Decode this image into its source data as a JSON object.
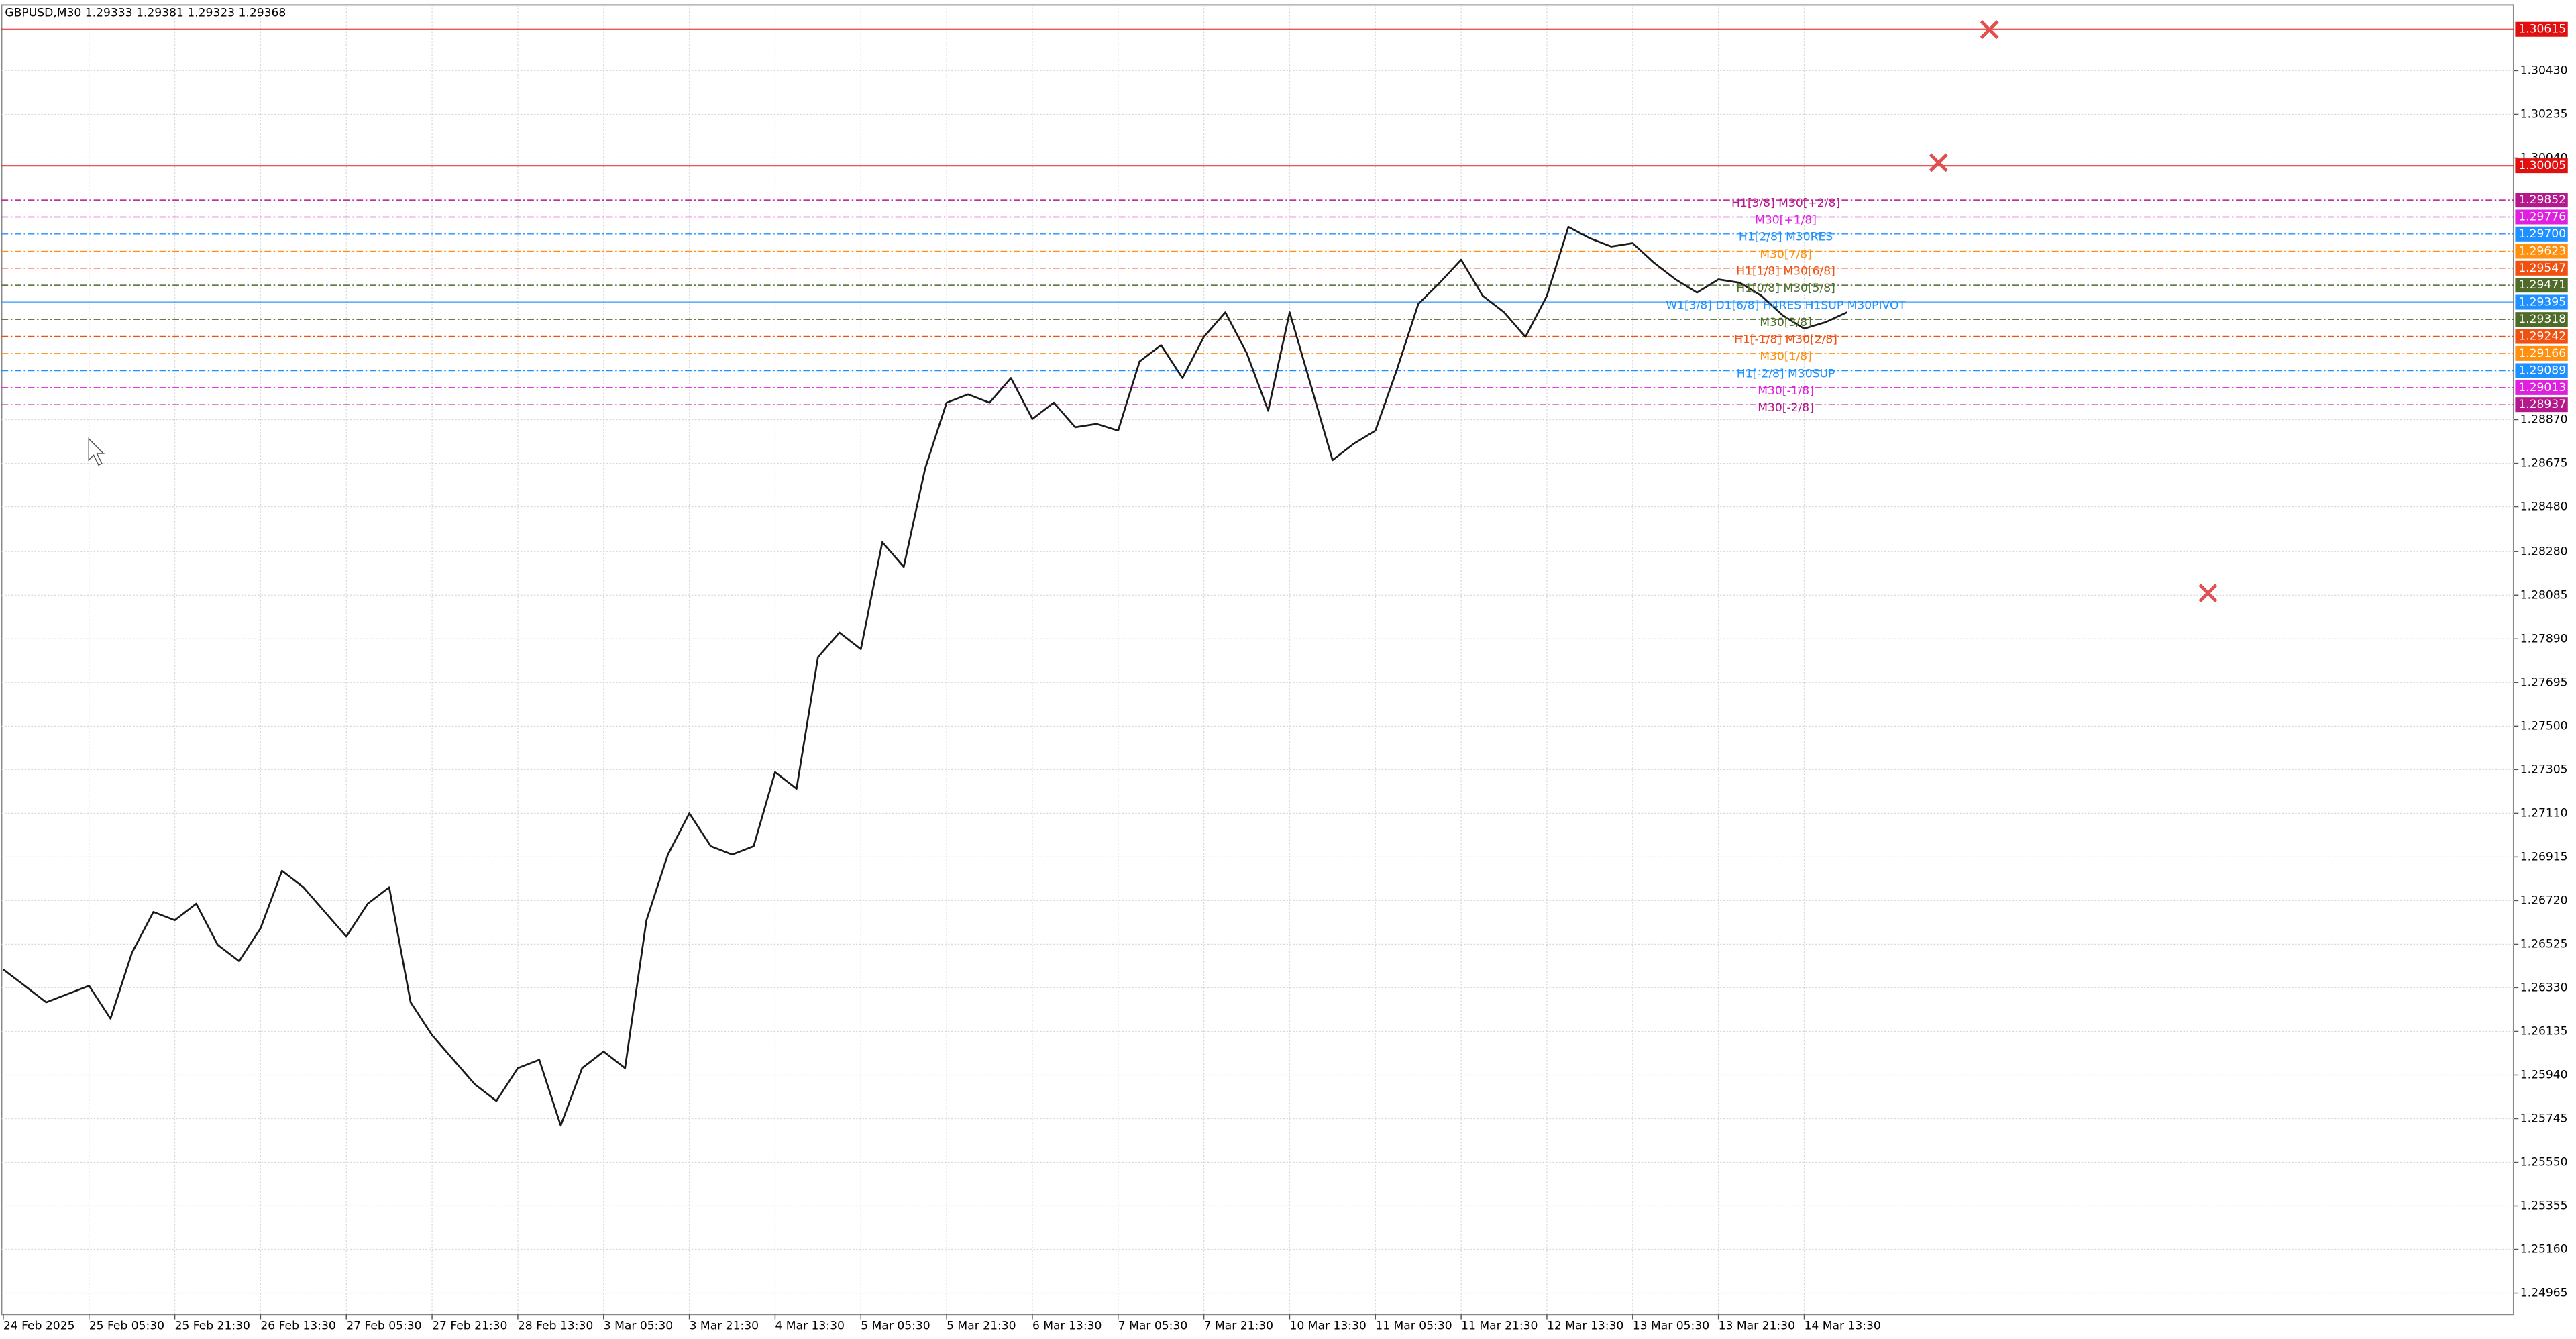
{
  "chart_data": {
    "type": "line",
    "title": "GBPUSD,M30  1.29333 1.29381 1.29323 1.29368",
    "color": "#1a1a1a",
    "grid": true,
    "ylim": [
      1.2487,
      1.30724
    ],
    "yticks": [
      {
        "value": 1.3043,
        "label": "1.30430"
      },
      1.30235,
      {
        "value": 1.3004,
        "label": "1.30040"
      },
      {
        "value": 1.2887,
        "label": "1.28870"
      },
      1.28675,
      {
        "value": 1.2848,
        "label": "1.28480"
      },
      {
        "value": 1.2828,
        "label": "1.28280"
      },
      1.28085,
      {
        "value": 1.2789,
        "label": "1.27890"
      },
      1.27695,
      {
        "value": 1.275,
        "label": "1.27500"
      },
      1.27305,
      {
        "value": 1.2711,
        "label": "1.27110"
      },
      1.26915,
      {
        "value": 1.2672,
        "label": "1.26720"
      },
      1.26525,
      {
        "value": 1.2633,
        "label": "1.26330"
      },
      1.26135,
      {
        "value": 1.2594,
        "label": "1.25940"
      },
      1.25745,
      {
        "value": 1.2555,
        "label": "1.25550"
      },
      1.25355,
      {
        "value": 1.2516,
        "label": "1.25160"
      },
      1.24965
    ],
    "x_labels": [
      "24 Feb 2025",
      "25 Feb 05:30",
      "25 Feb 21:30",
      "26 Feb 13:30",
      "27 Feb 05:30",
      "27 Feb 21:30",
      "28 Feb 13:30",
      "3 Mar 05:30",
      "3 Mar 21:30",
      "4 Mar 13:30",
      "5 Mar 05:30",
      "5 Mar 21:30",
      "6 Mar 13:30",
      "7 Mar 05:30",
      "7 Mar 21:30",
      "10 Mar 13:30",
      "11 Mar 05:30",
      "11 Mar 21:30",
      "12 Mar 13:30",
      "13 Mar 05:30",
      "13 Mar 21:30",
      "14 Mar 13:30"
    ],
    "values": [
      1.26412,
      1.26339,
      1.26265,
      1.26302,
      1.26339,
      1.26192,
      1.26486,
      1.26669,
      1.26632,
      1.26706,
      1.26522,
      1.26449,
      1.26596,
      1.26853,
      1.26779,
      1.26669,
      1.26559,
      1.26706,
      1.26779,
      1.26265,
      1.26118,
      1.26008,
      1.25898,
      1.25824,
      1.25971,
      1.26008,
      1.25714,
      1.25971,
      1.26045,
      1.25971,
      1.26632,
      1.26926,
      1.2711,
      1.26963,
      1.26926,
      1.26963,
      1.27294,
      1.2722,
      1.27808,
      1.27918,
      1.27844,
      1.28322,
      1.28212,
      1.28652,
      1.28946,
      1.28983,
      1.28946,
      1.29056,
      1.28873,
      1.28946,
      1.28836,
      1.28851,
      1.28821,
      1.2913,
      1.29203,
      1.29056,
      1.2924,
      1.2935,
      1.29167,
      1.2891,
      1.2935,
      1.2902,
      1.28689,
      1.28763,
      1.28821,
      1.29093,
      1.29387,
      1.29482,
      1.29585,
      1.29424,
      1.2935,
      1.2924,
      1.29424,
      1.29732,
      1.29681,
      1.29644,
      1.29659,
      1.29571,
      1.29497,
      1.29438,
      1.29497,
      1.29482,
      1.29424,
      1.29336,
      1.29277,
      1.29306,
      1.2935
    ],
    "levels": [
      {
        "value": 1.30615,
        "value_label": "1.30615",
        "color": "#e01010",
        "style": "solid"
      },
      {
        "value": 1.30005,
        "value_label": "1.30005",
        "color": "#e01010",
        "style": "solid"
      },
      {
        "name": "H1[3/8] M30[+2/8]",
        "value": 1.29852,
        "value_label": "1.29852",
        "color": "#b5178c",
        "style": "dashdot"
      },
      {
        "name": "M30[+1/8]",
        "value": 1.29776,
        "value_label": "1.29776",
        "color": "#e020e0",
        "style": "dashdot"
      },
      {
        "name": "H1[2/8] M30RES",
        "value": 1.297,
        "value_label": "1.29700",
        "color": "#1e90ff",
        "style": "dashdot"
      },
      {
        "name": "M30[7/8]",
        "value": 1.29623,
        "value_label": "1.29623",
        "color": "#ff9010",
        "style": "dashdot"
      },
      {
        "name": "H1[1/8] M30[6/8]",
        "value": 1.29547,
        "value_label": "1.29547",
        "color": "#f05010",
        "style": "dashdot"
      },
      {
        "name": "H1[0/8] M30[5/8]",
        "value": 1.29471,
        "value_label": "1.29471",
        "color": "#4f6b2a",
        "style": "dashdot"
      },
      {
        "name": "W1[3/8] D1[6/8] H4RES H1SUP M30PIVOT",
        "value": 1.29395,
        "value_label": "1.29395",
        "color": "#1e90ff",
        "style": "solid"
      },
      {
        "name": "M30[3/8]",
        "value": 1.29318,
        "value_label": "1.29318",
        "color": "#4f6b2a",
        "style": "dashdot"
      },
      {
        "name": "H1[-1/8] M30[2/8]",
        "value": 1.29242,
        "value_label": "1.29242",
        "color": "#f05010",
        "style": "dashdot"
      },
      {
        "name": "M30[1/8]",
        "value": 1.29166,
        "value_label": "1.29166",
        "color": "#ff9010",
        "style": "dashdot"
      },
      {
        "name": "H1[-2/8] M30SUP",
        "value": 1.29089,
        "value_label": "1.29089",
        "color": "#1e90ff",
        "style": "dashdot"
      },
      {
        "name": "M30[-1/8]",
        "value": 1.29013,
        "value_label": "1.29013",
        "color": "#e020e0",
        "style": "dashdot"
      },
      {
        "name": "M30[-2/8]",
        "value": 1.28937,
        "value_label": "1.28937",
        "color": "#b5178c",
        "style": "dashdot"
      }
    ]
  }
}
